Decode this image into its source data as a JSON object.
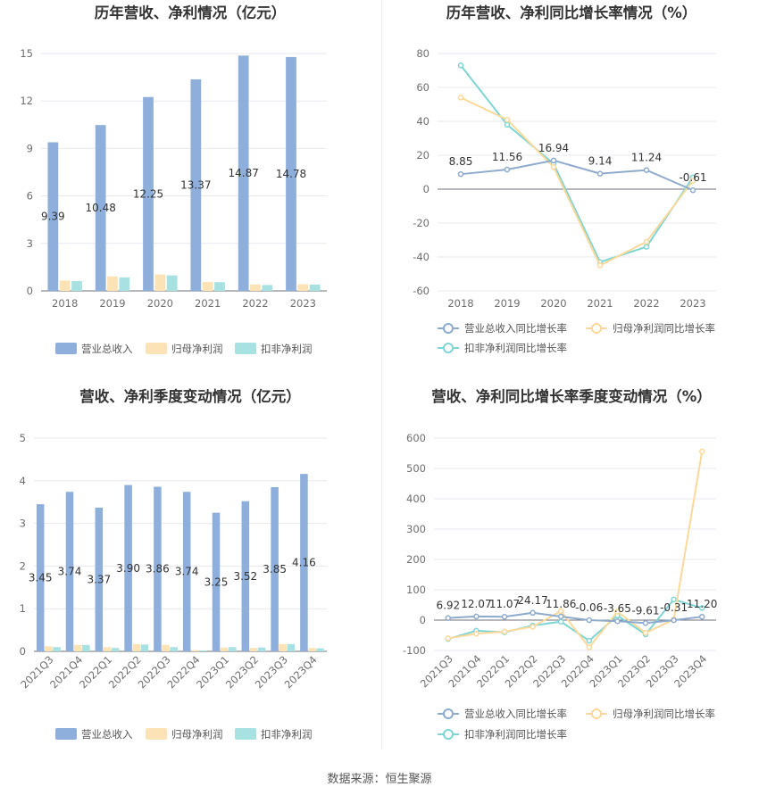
{
  "source": "数据来源：恒生聚源",
  "colors": {
    "revenue": "#8eaedc",
    "net_profit": "#fce3b5",
    "deducted_profit": "#a8e1e1",
    "revenue_line": "#8eaacc",
    "net_profit_line": "#fcd99a",
    "deducted_profit_line": "#7fd4d4"
  },
  "chart_data": [
    {
      "id": "annual_amount",
      "type": "bar",
      "title": "历年营收、净利情况（亿元）",
      "categories": [
        "2018",
        "2019",
        "2020",
        "2021",
        "2022",
        "2023"
      ],
      "ylim": [
        0,
        15
      ],
      "yticks": [
        "0",
        "3",
        "6",
        "9",
        "12",
        "15"
      ],
      "series": [
        {
          "name": "营业总收入",
          "values": [
            9.39,
            10.48,
            12.25,
            13.37,
            14.87,
            14.78
          ],
          "labels": [
            "9.39",
            "10.48",
            "12.25",
            "13.37",
            "14.87",
            "14.78"
          ]
        },
        {
          "name": "归母净利润",
          "values": [
            0.65,
            0.92,
            1.03,
            0.57,
            0.4,
            0.42
          ]
        },
        {
          "name": "扣非净利润",
          "values": [
            0.62,
            0.85,
            0.98,
            0.55,
            0.37,
            0.4
          ]
        }
      ],
      "legend": "bottom",
      "grid": true
    },
    {
      "id": "annual_growth",
      "type": "line",
      "title": "历年营收、净利同比增长率情况（%）",
      "categories": [
        "2018",
        "2019",
        "2020",
        "2021",
        "2022",
        "2023"
      ],
      "ylim": [
        -60,
        80
      ],
      "yticks": [
        "-60",
        "-40",
        "-20",
        "0",
        "20",
        "40",
        "60",
        "80"
      ],
      "series": [
        {
          "name": "营业总收入同比增长率",
          "values": [
            8.85,
            11.56,
            16.94,
            9.14,
            11.24,
            -0.61
          ],
          "labels": [
            "8.85",
            "11.56",
            "16.94",
            "9.14",
            "11.24",
            "-0.61"
          ]
        },
        {
          "name": "归母净利润同比增长率",
          "values": [
            54,
            41,
            13,
            -45,
            -31,
            5
          ]
        },
        {
          "name": "扣非净利润同比增长率",
          "values": [
            73,
            38,
            15,
            -43,
            -34,
            7
          ]
        }
      ],
      "legend": "bottom",
      "grid": true
    },
    {
      "id": "quarter_amount",
      "type": "bar",
      "title": "营收、净利季度变动情况（亿元）",
      "categories": [
        "2021Q3",
        "2021Q4",
        "2022Q1",
        "2022Q2",
        "2022Q3",
        "2022Q4",
        "2023Q1",
        "2023Q2",
        "2023Q3",
        "2023Q4"
      ],
      "ylim": [
        0,
        5
      ],
      "yticks": [
        "0",
        "1",
        "2",
        "3",
        "4",
        "5"
      ],
      "series": [
        {
          "name": "营业总收入",
          "values": [
            3.45,
            3.74,
            3.37,
            3.9,
            3.86,
            3.74,
            3.25,
            3.52,
            3.85,
            4.16
          ],
          "labels": [
            "3.45",
            "3.74",
            "3.37",
            "3.90",
            "3.86",
            "3.74",
            "3.25",
            "3.52",
            "3.85",
            "4.16"
          ]
        },
        {
          "name": "归母净利润",
          "values": [
            0.12,
            0.15,
            0.1,
            0.17,
            0.15,
            0.03,
            0.09,
            0.08,
            0.17,
            0.08
          ]
        },
        {
          "name": "扣非净利润",
          "values": [
            0.1,
            0.15,
            0.08,
            0.16,
            0.1,
            0.02,
            0.1,
            0.09,
            0.17,
            0.07
          ]
        }
      ],
      "legend": "bottom",
      "grid": true
    },
    {
      "id": "quarter_growth",
      "type": "line",
      "title": "营收、净利同比增长率季度变动情况（%）",
      "categories": [
        "2021Q3",
        "2021Q4",
        "2022Q1",
        "2022Q2",
        "2022Q3",
        "2022Q4",
        "2023Q1",
        "2023Q2",
        "2023Q3",
        "2023Q4"
      ],
      "ylim": [
        -100,
        600
      ],
      "yticks": [
        "-100",
        "0",
        "100",
        "200",
        "300",
        "400",
        "500",
        "600"
      ],
      "series": [
        {
          "name": "营业总收入同比增长率",
          "values": [
            6.92,
            12.07,
            11.07,
            24.17,
            11.86,
            -0.06,
            -3.65,
            -9.61,
            -0.31,
            11.2
          ],
          "labels": [
            "6.92",
            "12.07",
            "11.07",
            "24.17",
            "11.86",
            "-0.06",
            "-3.65",
            "-9.61",
            "-0.31",
            "11.20"
          ]
        },
        {
          "name": "归母净利润同比增长率",
          "values": [
            -60,
            -45,
            -38,
            -22,
            30,
            -90,
            28,
            -42,
            2,
            556
          ]
        },
        {
          "name": "扣非净利润同比增长率",
          "values": [
            -62,
            -35,
            -40,
            -18,
            -5,
            -68,
            15,
            -47,
            68,
            40
          ]
        }
      ],
      "legend": "bottom",
      "grid": true
    }
  ]
}
